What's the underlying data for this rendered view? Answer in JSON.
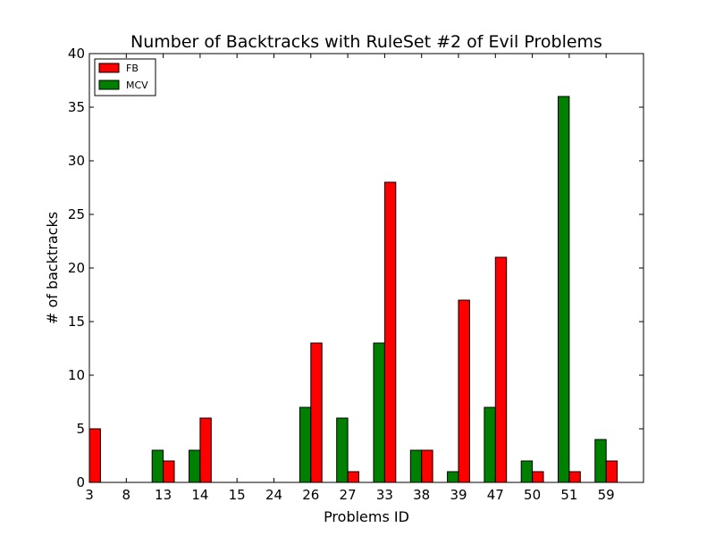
{
  "chart_data": {
    "type": "bar",
    "title": "Number of Backtracks with RuleSet #2 of Evil Problems",
    "xlabel": "Problems ID",
    "ylabel": "# of backtracks",
    "ylim": [
      0,
      40
    ],
    "yticks": [
      0,
      5,
      10,
      15,
      20,
      25,
      30,
      35,
      40
    ],
    "categories": [
      "3",
      "8",
      "13",
      "14",
      "15",
      "24",
      "26",
      "27",
      "33",
      "38",
      "39",
      "47",
      "50",
      "51",
      "59"
    ],
    "highlighted_categories": [
      "3",
      "8"
    ],
    "highlight_color": "#ff0000",
    "series": [
      {
        "name": "FB",
        "color": "#ff0000",
        "values": [
          5,
          0,
          2,
          6,
          0,
          0,
          13,
          1,
          28,
          3,
          17,
          21,
          1,
          1,
          2
        ]
      },
      {
        "name": "MCV",
        "color": "#008000",
        "values": [
          0,
          0,
          3,
          3,
          0,
          0,
          7,
          6,
          13,
          3,
          1,
          7,
          2,
          36,
          4
        ]
      }
    ],
    "legend_position": "top-left",
    "grid": false
  }
}
